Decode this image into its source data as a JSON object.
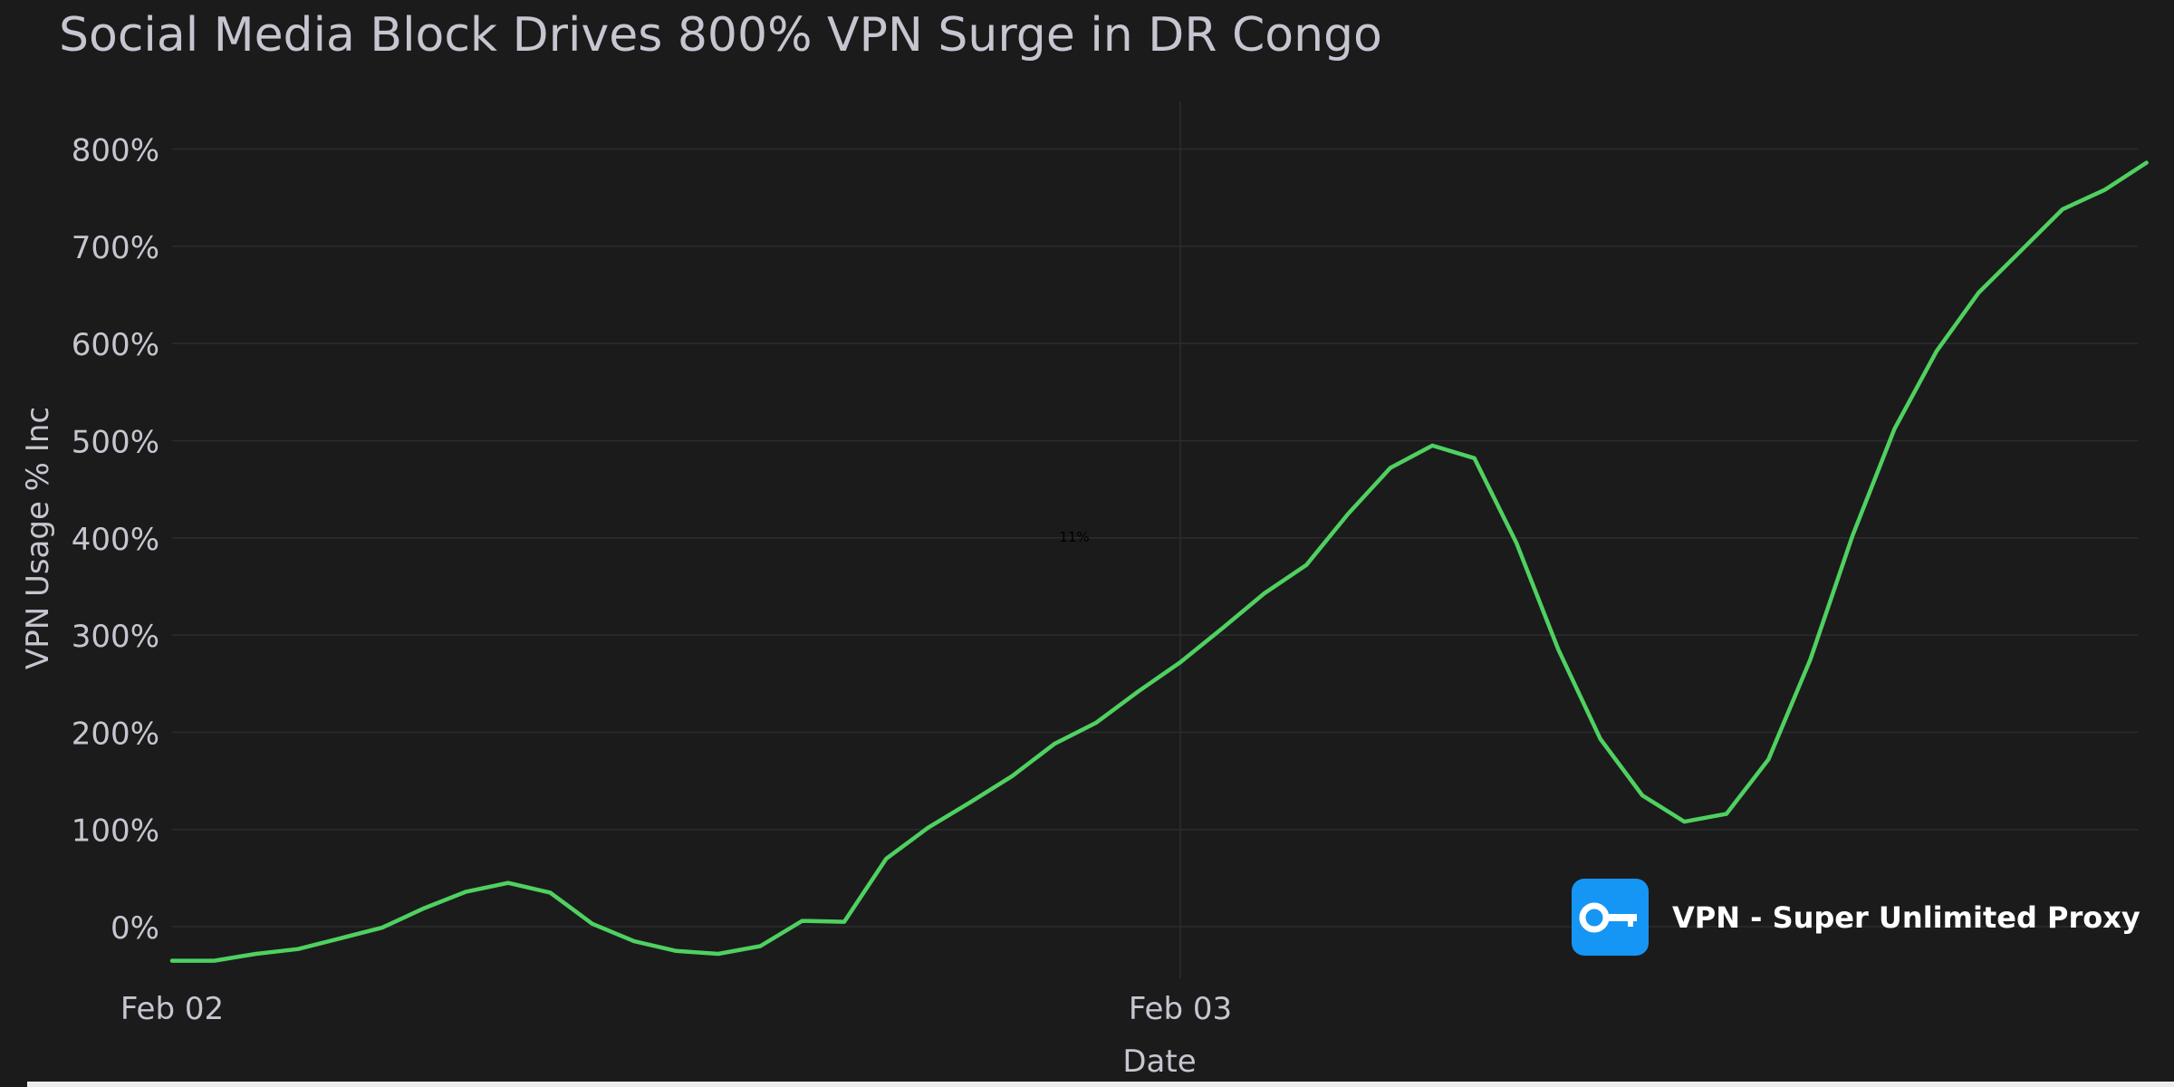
{
  "chart_data": {
    "type": "line",
    "title": "Social Media Block Drives 800% VPN Surge in DR Congo",
    "xlabel": "Date",
    "ylabel": "VPN Usage % Inc",
    "x_ticks": [
      "Feb 02",
      "Feb 03"
    ],
    "y_ticks": [
      "0%",
      "100%",
      "200%",
      "300%",
      "400%",
      "500%",
      "600%",
      "700%",
      "800%"
    ],
    "ylim": [
      -50,
      850
    ],
    "grid": true,
    "stray_label": "11%",
    "colors": {
      "background": "#1b1b1c",
      "line": "#4fd160",
      "text": "#c6c6d0",
      "grid": "#2c2c2e"
    },
    "series": [
      {
        "x": [
          "2024-02-02T00:00",
          "2024-02-02T01:00",
          "2024-02-02T02:00",
          "2024-02-02T03:00",
          "2024-02-02T04:00",
          "2024-02-02T05:00",
          "2024-02-02T06:00",
          "2024-02-02T07:00",
          "2024-02-02T08:00",
          "2024-02-02T09:00",
          "2024-02-02T10:00",
          "2024-02-02T11:00",
          "2024-02-02T12:00",
          "2024-02-02T13:00",
          "2024-02-02T14:00",
          "2024-02-02T15:00",
          "2024-02-02T16:00",
          "2024-02-02T17:00",
          "2024-02-02T18:00",
          "2024-02-02T19:00",
          "2024-02-02T20:00",
          "2024-02-02T21:00",
          "2024-02-02T22:00",
          "2024-02-02T23:00",
          "2024-02-03T00:00",
          "2024-02-03T01:00",
          "2024-02-03T02:00",
          "2024-02-03T03:00",
          "2024-02-03T04:00",
          "2024-02-03T05:00",
          "2024-02-03T06:00",
          "2024-02-03T07:00",
          "2024-02-03T08:00",
          "2024-02-03T09:00",
          "2024-02-03T10:00",
          "2024-02-03T11:00",
          "2024-02-03T12:00",
          "2024-02-03T13:00",
          "2024-02-03T14:00",
          "2024-02-03T15:00",
          "2024-02-03T16:00",
          "2024-02-03T17:00",
          "2024-02-03T18:00",
          "2024-02-03T19:00",
          "2024-02-03T20:00",
          "2024-02-03T21:00",
          "2024-02-03T22:00",
          "2024-02-03T23:00"
        ],
        "values": [
          -35,
          -35,
          -28,
          -23,
          -12,
          -1,
          19,
          36,
          45,
          35,
          3,
          -15,
          -25,
          -28,
          -20,
          6,
          5,
          70,
          102,
          128,
          155,
          188,
          210,
          242,
          272,
          307,
          343,
          372,
          425,
          472,
          495,
          482,
          395,
          285,
          193,
          135,
          108,
          116,
          172,
          275,
          402,
          512,
          592,
          652,
          695,
          738,
          758,
          786
        ]
      }
    ]
  },
  "watermark": {
    "label": "VPN - Super Unlimited Proxy",
    "icon": "key-icon"
  }
}
